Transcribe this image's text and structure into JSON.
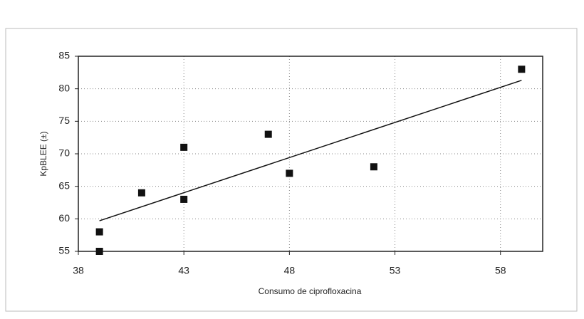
{
  "chart_data": {
    "type": "scatter",
    "x_label": "Consumo de ciprofloxacina",
    "y_label": "KpBLEE (±)",
    "x": [
      39,
      39,
      41,
      43,
      43,
      47,
      48,
      52,
      59
    ],
    "values": [
      58,
      55,
      64,
      71,
      63,
      73,
      67,
      68,
      83
    ],
    "color": "#111111",
    "trendline": {
      "x": [
        39,
        59
      ],
      "y": [
        59.7,
        81.3
      ],
      "color": "#111111"
    },
    "xlim": [
      38,
      60
    ],
    "xticks": [
      38,
      43,
      48,
      53,
      58
    ],
    "ylim": [
      55,
      85
    ],
    "yticks": [
      55,
      60,
      65,
      70,
      75,
      80,
      85
    ],
    "grid": true
  }
}
